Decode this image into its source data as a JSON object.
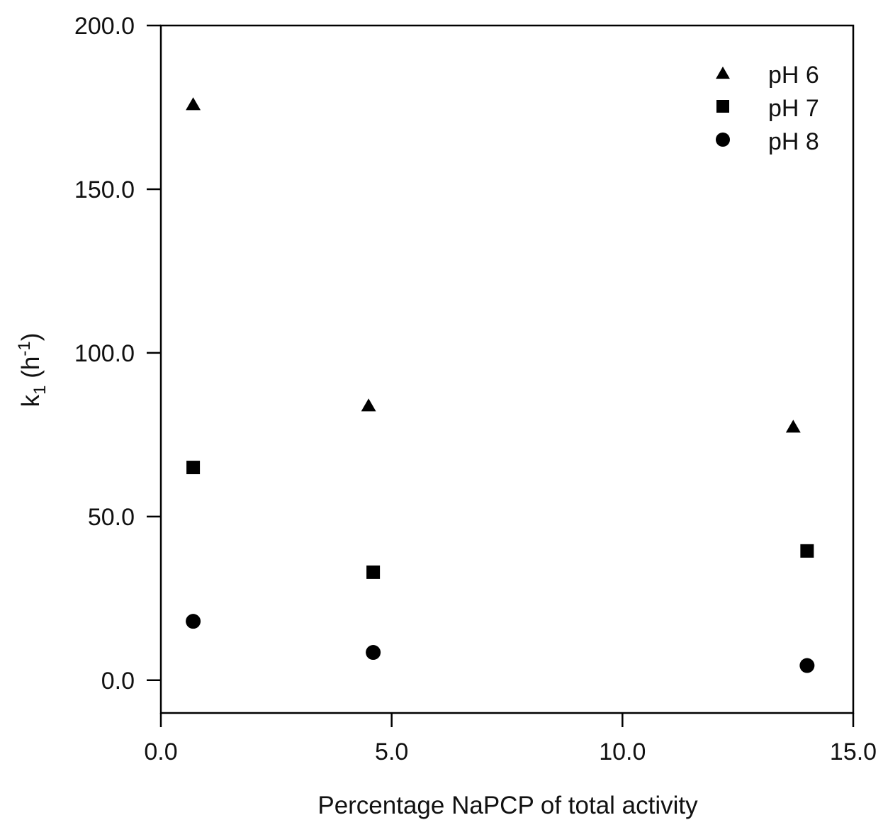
{
  "chart_data": {
    "type": "scatter",
    "title": "",
    "xlabel": "Percentage NaPCP of total activity",
    "ylabel_main": "k",
    "ylabel_sub": "1",
    "ylabel_unit_open": " (h",
    "ylabel_sup": "-1",
    "ylabel_unit_close": ")",
    "xlim": [
      0,
      15
    ],
    "ylim": [
      -10,
      200
    ],
    "xticks": [
      0,
      5,
      10,
      15
    ],
    "xtick_labels": [
      "0.0",
      "5.0",
      "10.0",
      "15.0"
    ],
    "yticks": [
      0,
      50,
      100,
      150,
      200
    ],
    "ytick_labels": [
      "0.0",
      "50.0",
      "100.0",
      "150.0",
      "200.0"
    ],
    "grid": false,
    "legend_position": "top-right",
    "series": [
      {
        "name": "pH 6",
        "marker": "triangle",
        "color": "#000000",
        "points": [
          {
            "x": 0.7,
            "y": 176
          },
          {
            "x": 4.5,
            "y": 84
          },
          {
            "x": 13.7,
            "y": 77.5
          }
        ]
      },
      {
        "name": "pH 7",
        "marker": "square",
        "color": "#000000",
        "points": [
          {
            "x": 0.7,
            "y": 65
          },
          {
            "x": 4.6,
            "y": 33
          },
          {
            "x": 14.0,
            "y": 39.5
          }
        ]
      },
      {
        "name": "pH 8",
        "marker": "circle",
        "color": "#000000",
        "points": [
          {
            "x": 0.7,
            "y": 18
          },
          {
            "x": 4.6,
            "y": 8.5
          },
          {
            "x": 14.0,
            "y": 4.5
          }
        ]
      }
    ]
  }
}
